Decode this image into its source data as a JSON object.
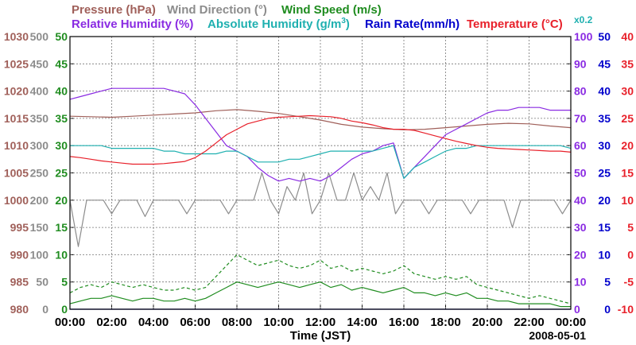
{
  "chart_data": {
    "type": "line",
    "xlabel": "Time (JST)",
    "date": "2008-05-01",
    "x_ticks": [
      "00:00",
      "02:00",
      "04:00",
      "06:00",
      "08:00",
      "10:00",
      "12:00",
      "14:00",
      "16:00",
      "18:00",
      "20:00",
      "22:00",
      "00:00"
    ],
    "xlim_hours": [
      0,
      24
    ],
    "grid": true,
    "legend": {
      "row1": [
        {
          "label": "Pressure (hPa)",
          "color": "#a0605a"
        },
        {
          "label": "Wind Direction (°)",
          "color": "#8c8c8c"
        },
        {
          "label": "Wind Speed (m/s)",
          "color": "#1f8c1f"
        }
      ],
      "row2": [
        {
          "label": "Relative Humidity (%)",
          "color": "#8a2be2"
        },
        {
          "label": "Absolute Humidity (g/m",
          "sup": "3",
          "suffix": ")",
          "color": "#1fb0b0"
        },
        {
          "label": "Rain Rate(mm/h)",
          "color": "#0000cc"
        },
        {
          "label": "Temperature (°C)",
          "color": "#e8202a"
        }
      ],
      "abs_humidity_note": "x0.2"
    },
    "axes": {
      "pressure": {
        "color": "#a0605a",
        "ticks": [
          "1030",
          "1025",
          "1020",
          "1015",
          "1010",
          "1005",
          "1000",
          "995",
          "990",
          "985",
          "980"
        ],
        "ylim": [
          980,
          1030
        ]
      },
      "wind_direction": {
        "color": "#8c8c8c",
        "ticks": [
          "500",
          "450",
          "400",
          "350",
          "300",
          "250",
          "200",
          "150",
          "100",
          "50",
          "0"
        ],
        "ylim": [
          0,
          500
        ]
      },
      "wind_speed": {
        "color": "#1f8c1f",
        "ticks": [
          "50",
          "45",
          "40",
          "35",
          "30",
          "25",
          "20",
          "15",
          "10",
          "5",
          "0"
        ],
        "ylim": [
          0,
          50
        ]
      },
      "relative_humidity": {
        "color": "#8a2be2",
        "ticks": [
          "100",
          "90",
          "80",
          "70",
          "60",
          "50",
          "40",
          "30",
          "20",
          "10",
          "0"
        ],
        "ylim": [
          0,
          100
        ]
      },
      "rain_rate": {
        "color": "#0000cc",
        "ticks": [
          "50",
          "45",
          "40",
          "35",
          "30",
          "25",
          "20",
          "15",
          "10",
          "5",
          "0"
        ],
        "ylim": [
          0,
          50
        ]
      },
      "temperature": {
        "color": "#e8202a",
        "ticks": [
          "40",
          "35",
          "30",
          "25",
          "20",
          "15",
          "10",
          "5",
          "0",
          "-5",
          "-10"
        ],
        "ylim": [
          -10,
          40
        ]
      }
    },
    "series": [
      {
        "name": "Pressure (hPa)",
        "axis": "pressure",
        "color": "#a0605a",
        "x": [
          0,
          1,
          2,
          3,
          4,
          5,
          6,
          7,
          8,
          9,
          10,
          11,
          12,
          13,
          14,
          15,
          16,
          17,
          18,
          19,
          20,
          21,
          22,
          23,
          24
        ],
        "y": [
          1015.4,
          1015.3,
          1015.2,
          1015.4,
          1015.6,
          1015.8,
          1016.0,
          1016.4,
          1016.6,
          1016.3,
          1015.9,
          1015.3,
          1014.7,
          1013.9,
          1013.4,
          1013.1,
          1012.9,
          1013.0,
          1013.3,
          1013.6,
          1013.9,
          1014.1,
          1014.0,
          1013.6,
          1013.3
        ]
      },
      {
        "name": "Wind Direction (°)",
        "axis": "wind_direction",
        "color": "#8c8c8c",
        "x": [
          0,
          0.4,
          0.8,
          1.2,
          1.6,
          2.0,
          2.4,
          2.8,
          3.2,
          3.6,
          4.0,
          4.4,
          4.8,
          5.2,
          5.6,
          6.0,
          6.4,
          6.8,
          7.2,
          7.6,
          8.0,
          8.4,
          8.8,
          9.2,
          9.6,
          10.0,
          10.4,
          10.8,
          11.2,
          11.6,
          12.0,
          12.4,
          12.8,
          13.2,
          13.6,
          14.0,
          14.4,
          14.8,
          15.2,
          15.6,
          16.0,
          16.4,
          16.8,
          17.2,
          17.6,
          18.0,
          18.4,
          18.8,
          19.2,
          19.6,
          20.0,
          20.4,
          20.8,
          21.2,
          21.6,
          22.0,
          22.4,
          22.8,
          23.2,
          23.6,
          24.0
        ],
        "y": [
          200,
          115,
          200,
          200,
          200,
          175,
          200,
          200,
          200,
          170,
          200,
          200,
          200,
          200,
          175,
          200,
          200,
          200,
          200,
          175,
          200,
          200,
          200,
          250,
          200,
          175,
          225,
          200,
          250,
          175,
          200,
          250,
          200,
          200,
          250,
          200,
          225,
          200,
          250,
          175,
          200,
          200,
          200,
          175,
          200,
          200,
          200,
          200,
          175,
          200,
          200,
          200,
          200,
          150,
          200,
          200,
          200,
          200,
          200,
          175,
          200
        ]
      },
      {
        "name": "Wind Speed (m/s) solid",
        "axis": "wind_speed",
        "color": "#1f8c1f",
        "x": [
          0,
          0.5,
          1,
          1.5,
          2,
          2.5,
          3,
          3.5,
          4,
          4.5,
          5,
          5.5,
          6,
          6.5,
          7,
          7.5,
          8,
          8.5,
          9,
          9.5,
          10,
          10.5,
          11,
          11.5,
          12,
          12.5,
          13,
          13.5,
          14,
          14.5,
          15,
          15.5,
          16,
          16.5,
          17,
          17.5,
          18,
          18.5,
          19,
          19.5,
          20,
          20.5,
          21,
          21.5,
          22,
          22.5,
          23,
          23.5,
          24
        ],
        "y": [
          1,
          1.5,
          2,
          2,
          2.5,
          2,
          1.5,
          2,
          2,
          1.5,
          1.5,
          2,
          1.5,
          2,
          3,
          4,
          5,
          4.5,
          4,
          4.5,
          5,
          4.5,
          4,
          4.5,
          5,
          4,
          4.5,
          3.5,
          4,
          3.5,
          3,
          3.5,
          4,
          3,
          3,
          2.5,
          3,
          2.5,
          3,
          2,
          2,
          1.5,
          1.5,
          1,
          1,
          1,
          1,
          0.5,
          0.5
        ]
      },
      {
        "name": "Wind Speed (m/s) dashed",
        "axis": "wind_speed",
        "color": "#1f8c1f",
        "dashed": true,
        "x": [
          0,
          0.5,
          1,
          1.5,
          2,
          2.5,
          3,
          3.5,
          4,
          4.5,
          5,
          5.5,
          6,
          6.5,
          7,
          7.5,
          8,
          8.5,
          9,
          9.5,
          10,
          10.5,
          11,
          11.5,
          12,
          12.5,
          13,
          13.5,
          14,
          14.5,
          15,
          15.5,
          16,
          16.5,
          17,
          17.5,
          18,
          18.5,
          19,
          19.5,
          20,
          20.5,
          21,
          21.5,
          22,
          22.5,
          23,
          23.5,
          24
        ],
        "y": [
          3,
          4,
          4.5,
          4,
          5,
          4.5,
          4,
          4.5,
          4,
          3.5,
          3.5,
          4,
          3.5,
          4,
          6,
          8,
          10,
          9,
          8,
          8.5,
          9,
          8,
          7.5,
          8,
          9,
          7.5,
          8,
          7,
          7.5,
          7,
          6.5,
          7,
          8,
          6.5,
          6,
          5.5,
          6,
          5.5,
          6,
          4.5,
          4,
          3.5,
          3,
          2.5,
          2,
          2.5,
          2,
          1.5,
          1
        ]
      },
      {
        "name": "Relative Humidity (%)",
        "axis": "relative_humidity",
        "color": "#8a2be2",
        "x": [
          0,
          0.5,
          1,
          1.5,
          2,
          2.5,
          3,
          3.5,
          4,
          4.5,
          5,
          5.5,
          6,
          6.5,
          7,
          7.5,
          8,
          8.5,
          9,
          9.5,
          10,
          10.5,
          11,
          11.5,
          12,
          12.5,
          13,
          13.5,
          14,
          14.5,
          15,
          15.5,
          16,
          16.5,
          17,
          17.5,
          18,
          18.5,
          19,
          19.5,
          20,
          20.5,
          21,
          21.5,
          22,
          22.5,
          23,
          23.5,
          24
        ],
        "y": [
          77,
          78,
          79,
          80,
          81,
          81,
          81,
          81,
          81,
          81,
          80,
          79,
          75,
          70,
          65,
          60,
          58,
          56,
          52,
          49,
          47,
          48,
          47,
          48,
          47,
          49,
          52,
          55,
          57,
          58,
          60,
          61,
          48,
          52,
          56,
          60,
          64,
          66,
          68,
          70,
          72,
          73,
          73,
          74,
          74,
          74,
          73,
          73,
          73
        ]
      },
      {
        "name": "Absolute Humidity (g/m3)",
        "axis": "relative_humidity",
        "color": "#1fb0b0",
        "x": [
          0,
          0.5,
          1,
          1.5,
          2,
          2.5,
          3,
          3.5,
          4,
          4.5,
          5,
          5.5,
          6,
          6.5,
          7,
          7.5,
          8,
          8.5,
          9,
          9.5,
          10,
          10.5,
          11,
          11.5,
          12,
          12.5,
          13,
          13.5,
          14,
          14.5,
          15,
          15.5,
          16,
          16.5,
          17,
          17.5,
          18,
          18.5,
          19,
          19.5,
          20,
          20.5,
          21,
          21.5,
          22,
          22.5,
          23,
          23.5,
          24
        ],
        "y": [
          60,
          60,
          60,
          60,
          59,
          59,
          59,
          59,
          59,
          58,
          58,
          57,
          57,
          57,
          57,
          58,
          58,
          56,
          54,
          54,
          54,
          55,
          55,
          56,
          57,
          58,
          58,
          58,
          58,
          58,
          59,
          60,
          48,
          52,
          54,
          56,
          58,
          59,
          59,
          60,
          60,
          60,
          60,
          60,
          60,
          60,
          60,
          60,
          59
        ]
      },
      {
        "name": "Rain Rate(mm/h)",
        "axis": "rain_rate",
        "color": "#0000cc",
        "x": [
          0,
          24
        ],
        "y": [
          0,
          0
        ]
      },
      {
        "name": "Temperature (°C)",
        "axis": "temperature",
        "color": "#e8202a",
        "x": [
          0,
          0.5,
          1,
          1.5,
          2,
          2.5,
          3,
          3.5,
          4,
          4.5,
          5,
          5.5,
          6,
          6.5,
          7,
          7.5,
          8,
          8.5,
          9,
          9.5,
          10,
          10.5,
          11,
          11.5,
          12,
          12.5,
          13,
          13.5,
          14,
          14.5,
          15,
          15.5,
          16,
          16.5,
          17,
          17.5,
          18,
          18.5,
          19,
          19.5,
          20,
          20.5,
          21,
          21.5,
          22,
          22.5,
          23,
          23.5,
          24
        ],
        "y": [
          18,
          17.8,
          17.5,
          17.2,
          17,
          16.8,
          16.6,
          16.6,
          16.6,
          16.7,
          16.9,
          17.1,
          17.8,
          19,
          20.5,
          22,
          23,
          24,
          24.5,
          25,
          25.2,
          25.3,
          25.4,
          25.5,
          25.4,
          25.3,
          25,
          24.5,
          24.2,
          23.8,
          23.3,
          23,
          23,
          22.8,
          22.3,
          21.8,
          21.3,
          20.8,
          20.4,
          20,
          19.7,
          19.5,
          19.4,
          19.3,
          19.2,
          19.1,
          19,
          19,
          18.8
        ]
      }
    ]
  }
}
